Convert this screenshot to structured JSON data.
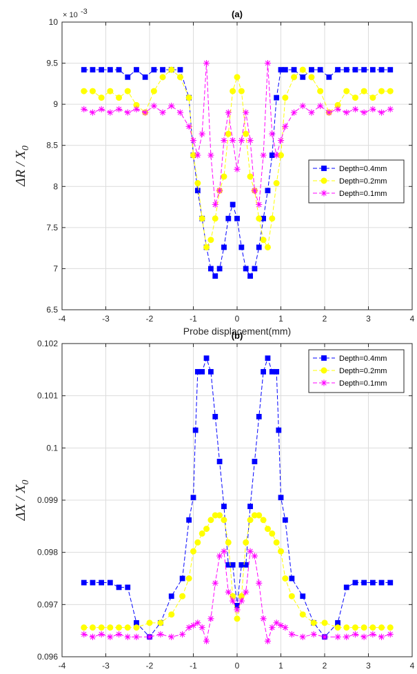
{
  "chart_data": [
    {
      "type": "line",
      "title": "(a)",
      "xlabel": "Probe displacement(mm)",
      "ylabel": "ΔR / X0",
      "ylabel_main": "ΔR / X",
      "ylabel_sub": "0",
      "y_exponent": "× 10",
      "y_exponent_power": "-3",
      "xlim": [
        -4,
        4
      ],
      "ylim": [
        6.5,
        10
      ],
      "xticks": [
        -4,
        -3,
        -2,
        -1,
        0,
        1,
        2,
        3,
        4
      ],
      "yticks": [
        6.5,
        7,
        7.5,
        8,
        8.5,
        9,
        9.5,
        10
      ],
      "xtick_labels": [
        "-4",
        "-3",
        "-2",
        "-1",
        "0",
        "1",
        "2",
        "3",
        "4"
      ],
      "ytick_labels": [
        "6.5",
        "7",
        "7.5",
        "8",
        "8.5",
        "9",
        "9.5",
        "10"
      ],
      "grid": true,
      "legend_position": "right",
      "series": [
        {
          "name": "Depth=0.4mm",
          "color": "#0000ff",
          "marker": "square",
          "x": [
            -3.5,
            -3.3,
            -3.1,
            -2.9,
            -2.7,
            -2.5,
            -2.3,
            -2.1,
            -1.9,
            -1.7,
            -1.5,
            -1.3,
            -1.1,
            -1.0,
            -0.9,
            -0.8,
            -0.7,
            -0.6,
            -0.5,
            -0.4,
            -0.3,
            -0.2,
            -0.1,
            0.0,
            0.1,
            0.2,
            0.3,
            0.4,
            0.5,
            0.6,
            0.7,
            0.8,
            0.9,
            1.0,
            1.1,
            1.3,
            1.5,
            1.7,
            1.9,
            2.1,
            2.3,
            2.5,
            2.7,
            2.9,
            3.1,
            3.3,
            3.5
          ],
          "y": [
            9.42,
            9.42,
            9.42,
            9.42,
            9.42,
            9.33,
            9.42,
            9.33,
            9.42,
            9.42,
            9.42,
            9.42,
            9.08,
            8.38,
            7.95,
            7.61,
            7.26,
            7.0,
            6.91,
            7.0,
            7.26,
            7.61,
            7.78,
            7.61,
            7.26,
            7.0,
            6.91,
            7.0,
            7.26,
            7.61,
            7.95,
            8.38,
            9.08,
            9.42,
            9.42,
            9.42,
            9.33,
            9.42,
            9.42,
            9.33,
            9.42,
            9.42,
            9.42,
            9.42,
            9.42,
            9.42,
            9.42
          ]
        },
        {
          "name": "Depth=0.2mm",
          "color": "#ffff00",
          "marker": "circle",
          "x": [
            -3.5,
            -3.3,
            -3.1,
            -2.9,
            -2.7,
            -2.5,
            -2.3,
            -2.1,
            -1.9,
            -1.7,
            -1.5,
            -1.3,
            -1.1,
            -1.0,
            -0.9,
            -0.8,
            -0.7,
            -0.6,
            -0.5,
            -0.4,
            -0.3,
            -0.2,
            -0.1,
            0.0,
            0.1,
            0.2,
            0.3,
            0.4,
            0.5,
            0.6,
            0.7,
            0.8,
            0.9,
            1.0,
            1.1,
            1.3,
            1.5,
            1.7,
            1.9,
            2.1,
            2.3,
            2.5,
            2.7,
            2.9,
            3.1,
            3.3,
            3.5
          ],
          "y": [
            9.16,
            9.16,
            9.08,
            9.16,
            9.08,
            9.16,
            8.99,
            8.9,
            9.16,
            9.33,
            9.42,
            9.33,
            9.08,
            8.38,
            8.04,
            7.61,
            7.26,
            7.35,
            7.61,
            7.95,
            8.12,
            8.64,
            9.16,
            9.33,
            9.16,
            8.64,
            8.12,
            7.95,
            7.61,
            7.35,
            7.26,
            7.61,
            8.04,
            8.38,
            9.08,
            9.33,
            9.42,
            9.33,
            9.16,
            8.9,
            8.99,
            9.16,
            9.08,
            9.16,
            9.08,
            9.16,
            9.16
          ]
        },
        {
          "name": "Depth=0.1mm",
          "color": "#ff00ff",
          "marker": "asterisk",
          "x": [
            -3.5,
            -3.3,
            -3.1,
            -2.9,
            -2.7,
            -2.5,
            -2.3,
            -2.1,
            -1.9,
            -1.7,
            -1.5,
            -1.3,
            -1.1,
            -1.0,
            -0.9,
            -0.8,
            -0.7,
            -0.6,
            -0.5,
            -0.4,
            -0.3,
            -0.2,
            -0.1,
            0.0,
            0.1,
            0.2,
            0.3,
            0.4,
            0.5,
            0.6,
            0.7,
            0.8,
            0.9,
            1.0,
            1.1,
            1.3,
            1.5,
            1.7,
            1.9,
            2.1,
            2.3,
            2.5,
            2.7,
            2.9,
            3.1,
            3.3,
            3.5
          ],
          "y": [
            8.94,
            8.9,
            8.94,
            8.9,
            8.94,
            8.9,
            8.94,
            8.9,
            8.98,
            8.9,
            8.98,
            8.9,
            8.73,
            8.56,
            8.38,
            8.64,
            9.5,
            8.38,
            7.78,
            7.95,
            8.56,
            8.9,
            8.56,
            8.21,
            8.56,
            8.9,
            8.56,
            7.95,
            7.78,
            8.38,
            9.5,
            8.64,
            8.38,
            8.56,
            8.73,
            8.9,
            8.98,
            8.9,
            8.98,
            8.9,
            8.94,
            8.9,
            8.94,
            8.9,
            8.94,
            8.9,
            8.94
          ]
        }
      ]
    },
    {
      "type": "line",
      "title": "(b)",
      "xlabel": "Probe displacement(mm)",
      "ylabel": "ΔX / X0",
      "ylabel_main": "ΔX / X",
      "ylabel_sub": "0",
      "xlim": [
        -4,
        4
      ],
      "ylim": [
        0.096,
        0.102
      ],
      "xticks": [
        -4,
        -3,
        -2,
        -1,
        0,
        1,
        2,
        3,
        4
      ],
      "yticks": [
        0.096,
        0.097,
        0.098,
        0.099,
        0.1,
        0.101,
        0.102
      ],
      "xtick_labels": [
        "-4",
        "-3",
        "-2",
        "-1",
        "0",
        "1",
        "2",
        "3",
        "4"
      ],
      "ytick_labels": [
        "0.096",
        "0.097",
        "0.098",
        "0.099",
        "0.1",
        "0.101",
        "0.102"
      ],
      "grid": true,
      "legend_position": "top-right",
      "series": [
        {
          "name": "Depth=0.4mm",
          "color": "#0000ff",
          "marker": "square",
          "x": [
            -3.5,
            -3.3,
            -3.1,
            -2.9,
            -2.7,
            -2.5,
            -2.3,
            -2.0,
            -1.75,
            -1.5,
            -1.25,
            -1.1,
            -1.0,
            -0.95,
            -0.9,
            -0.8,
            -0.7,
            -0.6,
            -0.5,
            -0.4,
            -0.3,
            -0.2,
            -0.1,
            0.0,
            0.1,
            0.2,
            0.3,
            0.4,
            0.5,
            0.6,
            0.7,
            0.8,
            0.9,
            0.95,
            1.0,
            1.1,
            1.25,
            1.5,
            1.75,
            2.0,
            2.3,
            2.5,
            2.7,
            2.9,
            3.1,
            3.3,
            3.5
          ],
          "y": [
            0.09742,
            0.09742,
            0.09742,
            0.09742,
            0.09733,
            0.09733,
            0.09665,
            0.09638,
            0.09665,
            0.09716,
            0.0975,
            0.09862,
            0.09905,
            0.10034,
            0.10146,
            0.10146,
            0.10172,
            0.10146,
            0.1006,
            0.09974,
            0.09888,
            0.09776,
            0.09776,
            0.09698,
            0.09776,
            0.09776,
            0.09888,
            0.09974,
            0.1006,
            0.10146,
            0.10172,
            0.10146,
            0.10146,
            0.10034,
            0.09905,
            0.09862,
            0.0975,
            0.09716,
            0.09665,
            0.09638,
            0.09665,
            0.09733,
            0.09742,
            0.09742,
            0.09742,
            0.09742,
            0.09742
          ]
        },
        {
          "name": "Depth=0.2mm",
          "color": "#ffff00",
          "marker": "circle",
          "x": [
            -3.5,
            -3.3,
            -3.1,
            -2.9,
            -2.7,
            -2.5,
            -2.3,
            -2.0,
            -1.75,
            -1.5,
            -1.25,
            -1.1,
            -1.0,
            -0.9,
            -0.8,
            -0.7,
            -0.6,
            -0.5,
            -0.4,
            -0.3,
            -0.2,
            -0.1,
            0.0,
            0.1,
            0.2,
            0.3,
            0.4,
            0.5,
            0.6,
            0.7,
            0.8,
            0.9,
            1.0,
            1.1,
            1.25,
            1.5,
            1.75,
            2.0,
            2.3,
            2.5,
            2.7,
            2.9,
            3.1,
            3.3,
            3.5
          ],
          "y": [
            0.09656,
            0.09656,
            0.09656,
            0.09656,
            0.09656,
            0.09656,
            0.09656,
            0.09665,
            0.09665,
            0.09681,
            0.09716,
            0.0975,
            0.09802,
            0.09819,
            0.09836,
            0.09845,
            0.09862,
            0.09871,
            0.09871,
            0.09862,
            0.09819,
            0.09716,
            0.09673,
            0.09716,
            0.09819,
            0.09862,
            0.09871,
            0.09871,
            0.09862,
            0.09845,
            0.09836,
            0.09819,
            0.09802,
            0.0975,
            0.09716,
            0.09681,
            0.09665,
            0.09665,
            0.09656,
            0.09656,
            0.09656,
            0.09656,
            0.09656,
            0.09656,
            0.09656
          ]
        },
        {
          "name": "Depth=0.1mm",
          "color": "#ff00ff",
          "marker": "asterisk",
          "x": [
            -3.5,
            -3.3,
            -3.1,
            -2.9,
            -2.7,
            -2.5,
            -2.3,
            -2.0,
            -1.75,
            -1.5,
            -1.25,
            -1.1,
            -1.0,
            -0.9,
            -0.8,
            -0.7,
            -0.6,
            -0.5,
            -0.4,
            -0.3,
            -0.2,
            -0.1,
            0.0,
            0.1,
            0.2,
            0.3,
            0.4,
            0.5,
            0.6,
            0.7,
            0.8,
            0.9,
            1.0,
            1.1,
            1.25,
            1.5,
            1.75,
            2.0,
            2.3,
            2.5,
            2.7,
            2.9,
            3.1,
            3.3,
            3.5
          ],
          "y": [
            0.09643,
            0.09638,
            0.09643,
            0.09638,
            0.09643,
            0.09638,
            0.09638,
            0.09638,
            0.09643,
            0.09638,
            0.09643,
            0.09656,
            0.0966,
            0.09665,
            0.09656,
            0.0963,
            0.09673,
            0.09741,
            0.09793,
            0.09802,
            0.09724,
            0.09707,
            0.0969,
            0.09707,
            0.09724,
            0.09802,
            0.09793,
            0.09741,
            0.09673,
            0.0963,
            0.09656,
            0.09665,
            0.0966,
            0.09656,
            0.09643,
            0.09638,
            0.09643,
            0.09638,
            0.09638,
            0.09638,
            0.09643,
            0.09638,
            0.09643,
            0.09638,
            0.09643
          ]
        }
      ]
    }
  ]
}
